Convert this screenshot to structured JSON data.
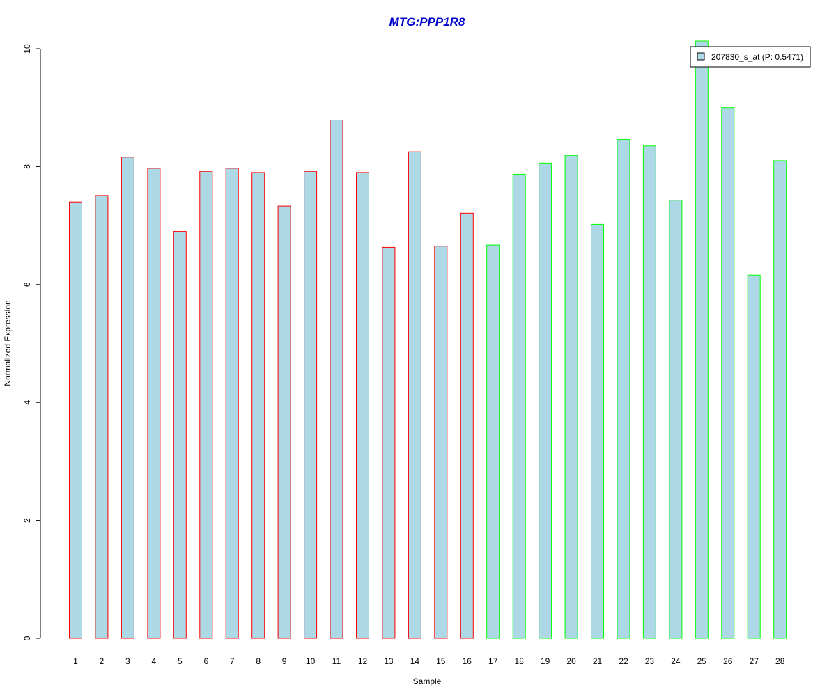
{
  "chart_data": {
    "type": "bar",
    "title": "MTG:PPP1R8",
    "xlabel": "Sample",
    "ylabel": "Normalized Expression",
    "ylim": [
      0,
      10
    ],
    "yticks": [
      "0",
      "2",
      "4",
      "6",
      "8",
      "10"
    ],
    "categories": [
      "1",
      "2",
      "3",
      "4",
      "5",
      "6",
      "7",
      "8",
      "9",
      "10",
      "11",
      "12",
      "13",
      "14",
      "15",
      "16",
      "17",
      "18",
      "19",
      "20",
      "21",
      "22",
      "23",
      "24",
      "25",
      "26",
      "27",
      "28"
    ],
    "values": [
      7.4,
      7.51,
      8.16,
      7.97,
      6.9,
      7.92,
      7.97,
      7.9,
      7.33,
      7.92,
      8.79,
      7.9,
      6.63,
      8.25,
      6.65,
      7.21,
      6.67,
      7.87,
      8.06,
      8.19,
      7.02,
      8.46,
      8.35,
      7.43,
      10.13,
      9.0,
      6.16,
      8.1
    ],
    "groups": [
      "red",
      "red",
      "red",
      "red",
      "red",
      "red",
      "red",
      "red",
      "red",
      "red",
      "red",
      "red",
      "red",
      "red",
      "red",
      "red",
      "green",
      "green",
      "green",
      "green",
      "green",
      "green",
      "green",
      "green",
      "green",
      "green",
      "green",
      "green"
    ],
    "legend": {
      "label": "207830_s_at (P: 0.5471)",
      "placement": "top-right"
    },
    "grid": false
  },
  "colors": {
    "bar_fill": "#add8e6",
    "group_border_red": "#ff0000",
    "group_border_green": "#00ff00",
    "title": "#0000cd",
    "axis": "#000000"
  }
}
